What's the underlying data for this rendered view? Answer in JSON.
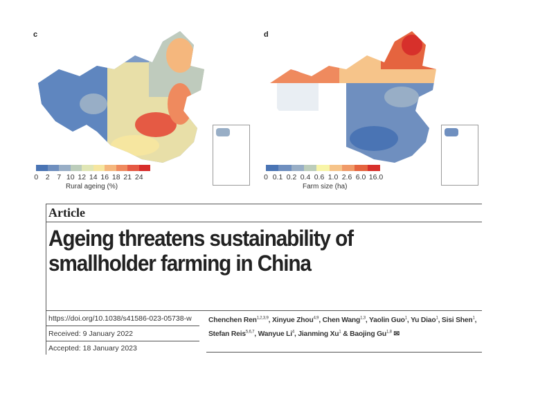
{
  "panel_c": {
    "label": "c",
    "colorbar_colors": [
      "#4a74b4",
      "#6f8fbf",
      "#98aec6",
      "#bccdbb",
      "#e0e6b5",
      "#f6e6a0",
      "#f5b77d",
      "#ef8a5e",
      "#e55a44",
      "#d72d2b"
    ],
    "ticks": [
      "0",
      "2",
      "7",
      "10",
      "12",
      "14",
      "16",
      "18",
      "21",
      "24"
    ],
    "axis_label": "Rural ageing (%)"
  },
  "panel_d": {
    "label": "d",
    "colorbar_colors": [
      "#4a74b4",
      "#6f8fbf",
      "#98aec6",
      "#bccdbb",
      "#f8f5a8",
      "#f6c48a",
      "#f09a68",
      "#e5643f",
      "#d7302b"
    ],
    "ticks": [
      "0",
      "0.1",
      "0.2",
      "0.4",
      "0.6",
      "1.0",
      "2.6",
      "6.0",
      "16.0"
    ],
    "axis_label": "Farm size (ha)"
  },
  "article": {
    "section": "Article",
    "title_line1": "Ageing threatens sustainability of",
    "title_line2": "smallholder farming in China",
    "doi": "https://doi.org/10.1038/s41586-023-05738-w",
    "received": "Received: 9 January 2022",
    "accepted": "Accepted: 18 January 2023",
    "authors": [
      {
        "name": "Chenchen Ren",
        "sup": "1,2,3,9",
        "sep": ", "
      },
      {
        "name": "Xinyue Zhou",
        "sup": "4,9",
        "sep": ", "
      },
      {
        "name": "Chen Wang",
        "sup": "1,3",
        "sep": ", "
      },
      {
        "name": "Yaolin Guo",
        "sup": "1",
        "sep": ", "
      },
      {
        "name": "Yu Diao",
        "sup": "1",
        "sep": ", "
      },
      {
        "name": "Sisi Shen",
        "sup": "1",
        "sep": ","
      },
      {
        "name": "Stefan Reis",
        "sup": "5,6,7",
        "sep": ", "
      },
      {
        "name": "Wanyue Li",
        "sup": "4",
        "sep": ", "
      },
      {
        "name": "Jianming Xu",
        "sup": "1",
        "sep": " & "
      },
      {
        "name": "Baojing Gu",
        "sup": "1,8",
        "sep": " ✉"
      }
    ]
  }
}
